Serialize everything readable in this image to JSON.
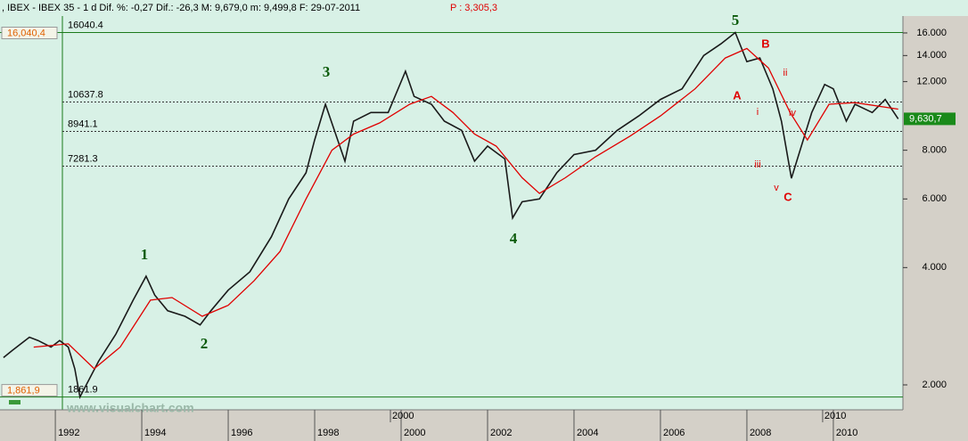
{
  "header": {
    "title": ", IBEX - IBEX 35 -  1 d Dif. %: -0,27 Dif.: -26,3 M: 9,679,0 m: 9,499,8 F: 29-07-2011",
    "quote": "P : 3,305,3"
  },
  "watermark": "www.visualchart.com",
  "chart_data": {
    "type": "line",
    "log_scale": true,
    "xlim": [
      1990.72,
      2011.61
    ],
    "ylim": [
      1726,
      17680
    ],
    "xticks": [
      1992,
      1994,
      1996,
      1998,
      2000,
      2002,
      2004,
      2006,
      2008,
      2010
    ],
    "x_upper_labels": [
      2000,
      2010
    ],
    "yticks": [
      {
        "value": 16000,
        "label": "16.000"
      },
      {
        "value": 14000,
        "label": "14.000"
      },
      {
        "value": 12000,
        "label": "12.000"
      },
      {
        "value": 8000,
        "label": "8.000"
      },
      {
        "value": 6000,
        "label": "6.000"
      },
      {
        "value": 4000,
        "label": "4.000"
      },
      {
        "value": 2000,
        "label": "2.000"
      }
    ],
    "price_label": "9,630,7",
    "levels": [
      {
        "value": 16040.4,
        "label": "16,040,4"
      },
      {
        "value": 10637.8
      },
      {
        "value": 8941.1
      },
      {
        "value": 7281.3
      },
      {
        "value": 1861.9,
        "label": "1,861,9"
      }
    ],
    "series": [
      {
        "color": "#1a1a1a",
        "x": [
          1990.8,
          1991.0,
          1991.4,
          1991.6,
          1991.9,
          1992.1,
          1992.3,
          1992.45,
          1992.57,
          1993.0,
          1993.4,
          1993.8,
          1994.1,
          1994.3,
          1994.6,
          1995.0,
          1995.35,
          1995.6,
          1996.0,
          1996.5,
          1997.0,
          1997.4,
          1997.8,
          1998.0,
          1998.25,
          1998.7,
          1998.9,
          1999.3,
          1999.7,
          2000.1,
          2000.3,
          2000.7,
          2001.0,
          2001.4,
          2001.7,
          2002.0,
          2002.4,
          2002.58,
          2002.8,
          2003.2,
          2003.6,
          2004.0,
          2004.5,
          2005.0,
          2005.5,
          2006.0,
          2006.5,
          2007.0,
          2007.4,
          2007.73,
          2008.0,
          2008.3,
          2008.6,
          2008.8,
          2009.03,
          2009.5,
          2009.8,
          2010.0,
          2010.3,
          2010.5,
          2010.9,
          2011.2,
          2011.5
        ],
        "values": [
          2350,
          2450,
          2650,
          2600,
          2500,
          2600,
          2500,
          2200,
          1861.9,
          2300,
          2700,
          3300,
          3800,
          3400,
          3100,
          3000,
          2850,
          3100,
          3500,
          3900,
          4800,
          6000,
          7000,
          8500,
          10500,
          7500,
          9500,
          10000,
          10000,
          12760,
          11000,
          10500,
          9500,
          9000,
          7500,
          8200,
          7600,
          5360,
          5900,
          6000,
          7000,
          7800,
          8000,
          9000,
          9800,
          10800,
          11500,
          14000,
          15000,
          16040.4,
          13500,
          13800,
          11500,
          9500,
          6780,
          10000,
          11800,
          11500,
          9500,
          10500,
          10000,
          10800,
          9630.7
        ]
      },
      {
        "color": "#e00000",
        "x": [
          1991.5,
          1992.3,
          1992.9,
          1993.5,
          1994.2,
          1994.7,
          1995.4,
          1996.0,
          1996.6,
          1997.2,
          1997.8,
          1998.4,
          1998.9,
          1999.5,
          2000.2,
          2000.7,
          2001.2,
          2001.7,
          2002.2,
          2002.8,
          2003.2,
          2003.8,
          2004.5,
          2005.3,
          2006.0,
          2006.8,
          2007.5,
          2008.0,
          2008.5,
          2009.0,
          2009.4,
          2009.9,
          2010.5,
          2011.5
        ],
        "values": [
          2500,
          2550,
          2200,
          2500,
          3300,
          3350,
          3000,
          3200,
          3700,
          4400,
          6000,
          8000,
          8800,
          9400,
          10500,
          11000,
          10000,
          8800,
          8200,
          6800,
          6200,
          6800,
          7700,
          8700,
          9800,
          11500,
          13800,
          14600,
          13000,
          10000,
          8500,
          10500,
          10600,
          10200
        ]
      }
    ],
    "annotations": [
      "1",
      "2",
      "3",
      "4",
      "5",
      "A",
      "B",
      "C",
      "i",
      "ii",
      "iii",
      "iv",
      "v"
    ]
  }
}
